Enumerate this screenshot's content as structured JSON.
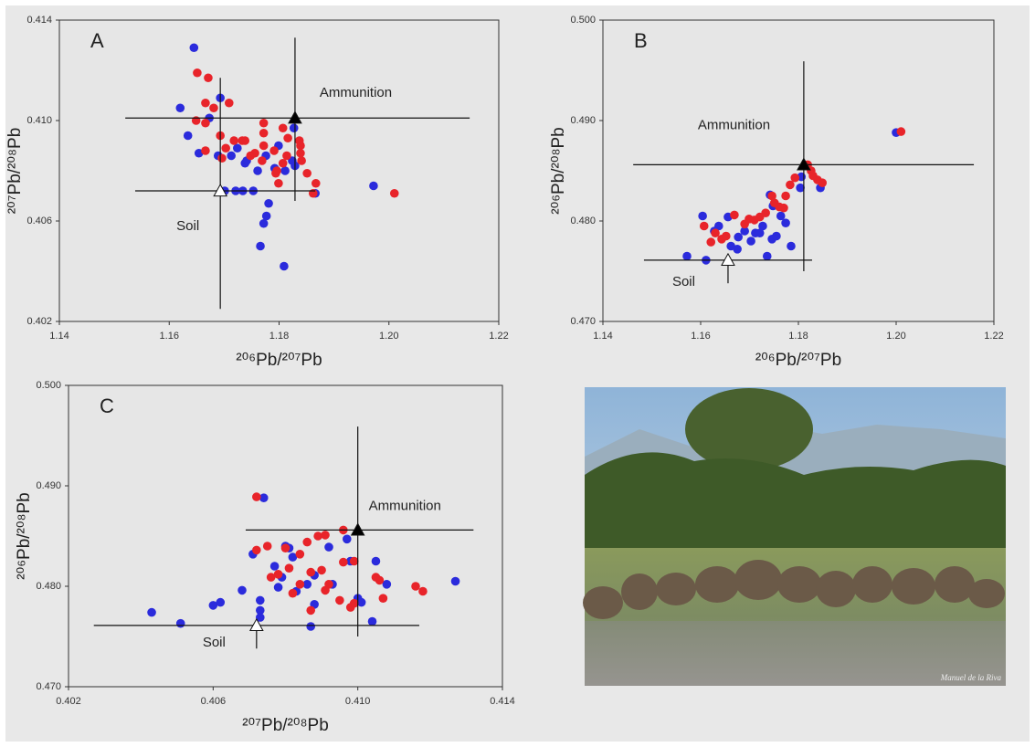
{
  "chart_data": [
    {
      "type": "scatter",
      "title": "A",
      "x_label": "²⁰⁶Pb/²⁰⁷Pb",
      "y_label": "²⁰⁷Pb/²⁰⁸Pb",
      "xlim": [
        1.14,
        1.22
      ],
      "ylim": [
        0.402,
        0.414
      ],
      "xticks": [
        1.14,
        1.16,
        1.18,
        {
          "value": 1.2,
          "label": "1.20"
        },
        1.22
      ],
      "yticks": [
        0.402,
        0.406,
        {
          "value": 0.41,
          "label": "0.410"
        },
        0.414
      ],
      "grid": false,
      "series": [
        {
          "color": "#2b2bdc",
          "x": [
            1.1645,
            1.162,
            1.1693,
            1.1673,
            1.1634,
            1.1654,
            1.1689,
            1.1724,
            1.1713,
            1.1738,
            1.1776,
            1.1761,
            1.1792,
            1.1811,
            1.1824,
            1.1827,
            1.1829,
            1.1701,
            1.1721,
            1.1734,
            1.1753,
            1.1781,
            1.1777,
            1.1772,
            1.1766,
            1.1809,
            1.1972,
            1.1866,
            1.1741,
            1.1799
          ],
          "values": [
            0.4129,
            0.4105,
            0.4109,
            0.4101,
            0.4094,
            0.4087,
            0.4086,
            0.4089,
            0.4086,
            0.4083,
            0.4086,
            0.408,
            0.4081,
            0.408,
            0.4084,
            0.4097,
            0.4082,
            0.4072,
            0.4072,
            0.4072,
            0.4072,
            0.4067,
            0.4062,
            0.4059,
            0.405,
            0.4042,
            0.4074,
            0.4071,
            0.4084,
            0.409
          ]
        },
        {
          "color": "#e8242a",
          "x": [
            1.1651,
            1.1671,
            1.1666,
            1.1681,
            1.1666,
            1.1693,
            1.1709,
            1.1733,
            1.1738,
            1.1748,
            1.1756,
            1.1772,
            1.1772,
            1.1772,
            1.1769,
            1.1791,
            1.1794,
            1.1796,
            1.1799,
            1.1807,
            1.1816,
            1.1814,
            1.1807,
            1.1837,
            1.1839,
            1.1839,
            1.1841,
            1.1851,
            1.1867,
            1.1862,
            1.201,
            1.1703,
            1.1696,
            1.1649,
            1.1666,
            1.1718
          ],
          "values": [
            0.4119,
            0.4117,
            0.4107,
            0.4105,
            0.4099,
            0.4094,
            0.4107,
            0.4092,
            0.4092,
            0.4086,
            0.4087,
            0.4099,
            0.4095,
            0.409,
            0.4084,
            0.4088,
            0.4079,
            0.408,
            0.4075,
            0.4097,
            0.4093,
            0.4086,
            0.4083,
            0.4092,
            0.409,
            0.4087,
            0.4084,
            0.4079,
            0.4075,
            0.4071,
            0.4071,
            0.4089,
            0.4085,
            0.41,
            0.4088,
            0.4092
          ]
        }
      ],
      "reference_points": [
        {
          "label": "Ammunition",
          "x": 1.1829,
          "y": 0.4101,
          "x_extent": [
            1.152,
            1.2147
          ],
          "y_extent": [
            0.4068,
            0.4133
          ],
          "fill": "#000000"
        },
        {
          "label": "Soil",
          "x": 1.1693,
          "y": 0.4072,
          "x_extent": [
            1.1538,
            1.1866
          ],
          "y_extent": [
            0.4025,
            0.4117
          ],
          "fill": "#ffffff"
        }
      ]
    },
    {
      "type": "scatter",
      "title": "B",
      "x_label": "²⁰⁶Pb/²⁰⁷Pb",
      "y_label": "²⁰⁶Pb/²⁰⁸Pb",
      "xlim": [
        1.14,
        1.22
      ],
      "ylim": [
        0.47,
        0.5
      ],
      "xticks": [
        1.14,
        1.16,
        1.18,
        {
          "value": 1.2,
          "label": "1.20"
        },
        1.22
      ],
      "yticks": [
        {
          "value": 0.47,
          "label": "0.470"
        },
        {
          "value": 0.48,
          "label": "0.480"
        },
        {
          "value": 0.49,
          "label": "0.490"
        },
        {
          "value": 0.5,
          "label": "0.500"
        }
      ],
      "grid": false,
      "series": [
        {
          "color": "#2b2bdc",
          "x": [
            1.1572,
            1.1611,
            1.1604,
            1.1637,
            1.1656,
            1.1675,
            1.1677,
            1.169,
            1.1703,
            1.1712,
            1.1721,
            1.1736,
            1.1742,
            1.1746,
            1.1755,
            1.1764,
            1.1774,
            1.1785,
            1.1804,
            1.1806,
            1.1845,
            1.2,
            1.1748,
            1.1727,
            1.1628,
            1.1662
          ],
          "values": [
            0.4765,
            0.4761,
            0.4805,
            0.4795,
            0.4804,
            0.4772,
            0.4784,
            0.479,
            0.478,
            0.4788,
            0.4788,
            0.4765,
            0.4826,
            0.4782,
            0.4785,
            0.4805,
            0.4798,
            0.4775,
            0.4833,
            0.4844,
            0.4833,
            0.4888,
            0.4815,
            0.4795,
            0.479,
            0.4775
          ]
        },
        {
          "color": "#e8242a",
          "x": [
            1.1607,
            1.1621,
            1.163,
            1.1643,
            1.1652,
            1.1669,
            1.169,
            1.1699,
            1.171,
            1.1721,
            1.1733,
            1.1746,
            1.1751,
            1.1761,
            1.177,
            1.1774,
            1.1783,
            1.1793,
            1.1819,
            1.1826,
            1.183,
            1.1839,
            1.1849,
            1.201
          ],
          "values": [
            0.4795,
            0.4779,
            0.4788,
            0.4782,
            0.4785,
            0.4806,
            0.4797,
            0.4802,
            0.4801,
            0.4804,
            0.4808,
            0.4825,
            0.4818,
            0.4814,
            0.4813,
            0.4825,
            0.4836,
            0.4843,
            0.4856,
            0.485,
            0.4845,
            0.4841,
            0.4838,
            0.4889
          ]
        }
      ],
      "reference_points": [
        {
          "label": "Ammunition",
          "x": 1.1811,
          "y": 0.4856,
          "x_extent": [
            1.1462,
            1.2159
          ],
          "y_extent": [
            0.475,
            0.4959
          ],
          "fill": "#000000"
        },
        {
          "label": "Soil",
          "x": 1.1656,
          "y": 0.4761,
          "x_extent": [
            1.1484,
            1.1828
          ],
          "y_extent": [
            0.4738,
            0.4761
          ],
          "fill": "#ffffff"
        }
      ]
    },
    {
      "type": "scatter",
      "title": "C",
      "x_label": "²⁰⁷Pb/²⁰⁸Pb",
      "y_label": "²⁰⁶Pb/²⁰⁸Pb",
      "xlim": [
        0.402,
        0.414
      ],
      "ylim": [
        0.47,
        0.5
      ],
      "xticks": [
        0.402,
        0.406,
        {
          "value": 0.41,
          "label": "0.410"
        },
        0.414
      ],
      "yticks": [
        {
          "value": 0.47,
          "label": "0.470"
        },
        {
          "value": 0.48,
          "label": "0.480"
        },
        {
          "value": 0.49,
          "label": "0.490"
        },
        {
          "value": 0.5,
          "label": "0.500"
        }
      ],
      "grid": false,
      "series": [
        {
          "color": "#2b2bdc",
          "x": [
            0.4043,
            0.4051,
            0.406,
            0.4062,
            0.4068,
            0.4071,
            0.4073,
            0.4073,
            0.4073,
            0.4074,
            0.4078,
            0.4079,
            0.408,
            0.4081,
            0.4082,
            0.4083,
            0.4086,
            0.4087,
            0.4088,
            0.4088,
            0.4092,
            0.4093,
            0.4097,
            0.4098,
            0.41,
            0.4101,
            0.4104,
            0.4108,
            0.4127,
            0.4105,
            0.4077
          ],
          "values": [
            0.4774,
            0.4763,
            0.4781,
            0.4784,
            0.4796,
            0.4832,
            0.4786,
            0.4776,
            0.4769,
            0.4888,
            0.4799,
            0.4809,
            0.484,
            0.4838,
            0.4829,
            0.4795,
            0.4802,
            0.476,
            0.4811,
            0.4782,
            0.4839,
            0.4802,
            0.4847,
            0.4825,
            0.4788,
            0.4784,
            0.4765,
            0.4802,
            0.4805,
            0.4825,
            0.482
          ]
        },
        {
          "color": "#e8242a",
          "x": [
            0.4072,
            0.4072,
            0.4075,
            0.4076,
            0.408,
            0.4081,
            0.4084,
            0.4084,
            0.4086,
            0.4087,
            0.4087,
            0.4089,
            0.409,
            0.4091,
            0.4091,
            0.4092,
            0.4095,
            0.4096,
            0.4096,
            0.4098,
            0.4099,
            0.4099,
            0.4105,
            0.4106,
            0.4107,
            0.4116,
            0.4118,
            0.4082,
            0.4078
          ],
          "values": [
            0.4889,
            0.4836,
            0.484,
            0.4809,
            0.4838,
            0.4818,
            0.4802,
            0.4832,
            0.4844,
            0.4814,
            0.4776,
            0.485,
            0.4816,
            0.4796,
            0.4851,
            0.4802,
            0.4786,
            0.4824,
            0.4856,
            0.4779,
            0.4825,
            0.4783,
            0.4809,
            0.4806,
            0.4788,
            0.48,
            0.4795,
            0.4793,
            0.4812
          ]
        }
      ],
      "reference_points": [
        {
          "label": "Ammunition",
          "x": 0.41,
          "y": 0.4856,
          "x_extent": [
            0.4069,
            0.4132
          ],
          "y_extent": [
            0.475,
            0.4959
          ],
          "fill": "#000000"
        },
        {
          "label": "Soil",
          "x": 0.4072,
          "y": 0.4761,
          "x_extent": [
            0.4027,
            0.4117
          ],
          "y_extent": [
            0.4738,
            0.4761
          ],
          "fill": "#ffffff"
        }
      ]
    }
  ],
  "photo": {
    "credit": "Manuel de la Riva"
  }
}
